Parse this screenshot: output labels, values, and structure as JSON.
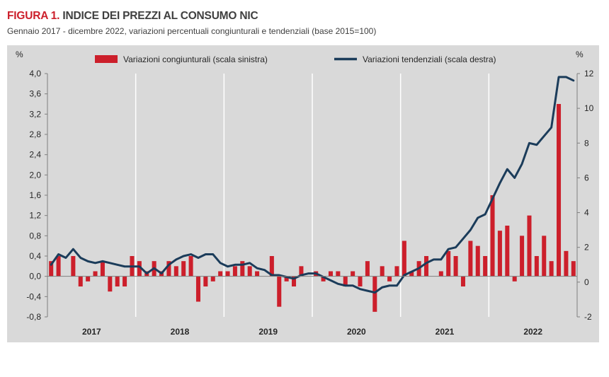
{
  "header": {
    "figure_label": "FIGURA 1.",
    "title": "INDICE DEI PREZZI AL CONSUMO NIC",
    "subtitle": "Gennaio 2017 - dicembre 2022,  variazioni percentuali  congiunturali  e tendenziali  (base 2015=100)"
  },
  "colors": {
    "bar": "#cc1f2b",
    "line": "#1b3c5a",
    "panel": "#d9d9d9",
    "grid": "#ffffff"
  },
  "chart_data": {
    "type": "bar+line",
    "left_axis": {
      "unit": "%",
      "ylim": [
        -0.8,
        4.0
      ],
      "ticks": [
        "4,0",
        "3,6",
        "3,2",
        "2,8",
        "2,4",
        "2,0",
        "1,6",
        "1,2",
        "0,8",
        "0,4",
        "0,0",
        "-0,4",
        "-0,8"
      ]
    },
    "right_axis": {
      "unit": "%",
      "ylim": [
        -2,
        12
      ],
      "ticks": [
        "12",
        "10",
        "8",
        "6",
        "4",
        "2",
        "0",
        "-2"
      ]
    },
    "years": [
      "2017",
      "2018",
      "2019",
      "2020",
      "2021",
      "2022"
    ],
    "series": [
      {
        "name": "Variazioni congiunturali (scala sinistra)",
        "type": "bar",
        "axis": "left",
        "values": [
          0.3,
          0.4,
          0.0,
          0.4,
          -0.2,
          -0.1,
          0.1,
          0.3,
          -0.3,
          -0.2,
          -0.2,
          0.4,
          0.3,
          0.1,
          0.3,
          0.1,
          0.3,
          0.2,
          0.3,
          0.4,
          -0.5,
          -0.2,
          -0.1,
          0.1,
          0.1,
          0.2,
          0.3,
          0.2,
          0.1,
          0.0,
          0.4,
          -0.6,
          -0.1,
          -0.2,
          0.2,
          0.0,
          0.1,
          -0.1,
          0.1,
          0.1,
          -0.2,
          0.1,
          -0.2,
          0.3,
          -0.7,
          0.2,
          -0.1,
          0.2,
          0.7,
          0.1,
          0.3,
          0.4,
          0.0,
          0.1,
          0.5,
          0.4,
          -0.2,
          0.7,
          0.6,
          0.4,
          1.6,
          0.9,
          1.0,
          -0.1,
          0.8,
          1.2,
          0.4,
          0.8,
          0.3,
          3.4,
          0.5,
          0.3
        ]
      },
      {
        "name": "Variazioni tendenziali (scala destra)",
        "type": "line",
        "axis": "right",
        "values": [
          1.0,
          1.6,
          1.4,
          1.9,
          1.4,
          1.2,
          1.1,
          1.2,
          1.1,
          1.0,
          0.9,
          0.9,
          0.9,
          0.5,
          0.8,
          0.5,
          1.0,
          1.3,
          1.5,
          1.6,
          1.4,
          1.6,
          1.6,
          1.1,
          0.9,
          1.0,
          1.0,
          1.1,
          0.8,
          0.7,
          0.4,
          0.4,
          0.3,
          0.2,
          0.4,
          0.5,
          0.5,
          0.3,
          0.1,
          -0.1,
          -0.2,
          -0.2,
          -0.4,
          -0.5,
          -0.6,
          -0.3,
          -0.2,
          -0.2,
          0.4,
          0.6,
          0.8,
          1.1,
          1.3,
          1.3,
          1.9,
          2.0,
          2.5,
          3.0,
          3.7,
          3.9,
          4.8,
          5.7,
          6.5,
          6.0,
          6.8,
          8.0,
          7.9,
          8.4,
          8.9,
          11.8,
          11.8,
          11.6
        ]
      }
    ],
    "grid": true,
    "legend": "top"
  }
}
